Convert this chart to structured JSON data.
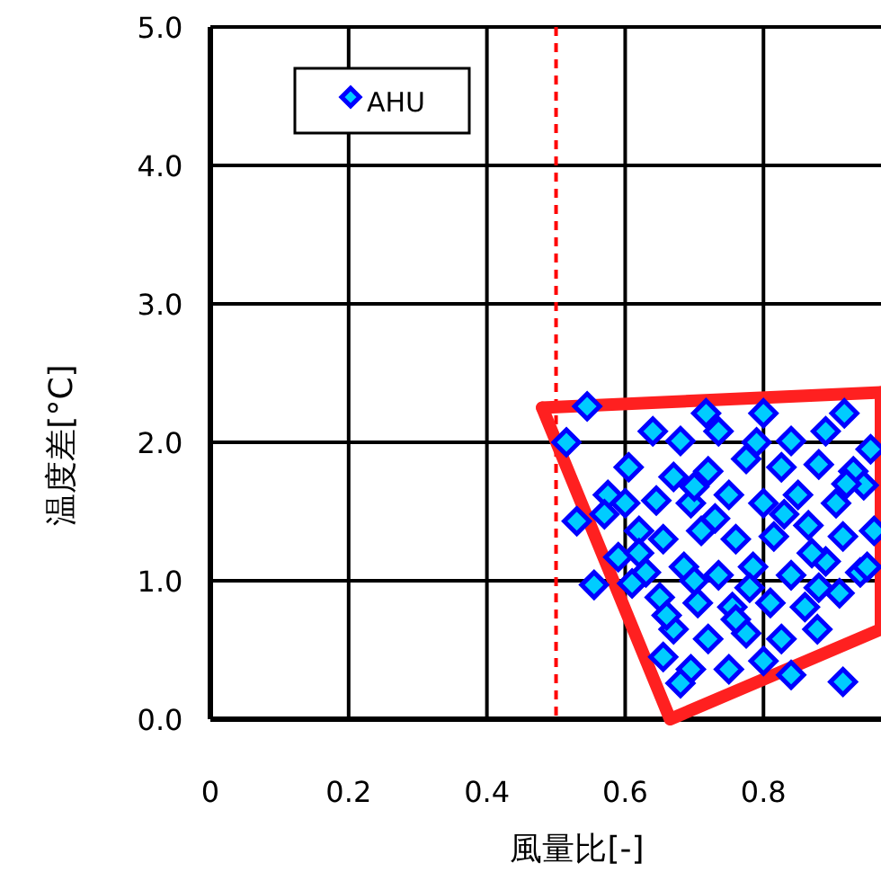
{
  "chart_data": {
    "type": "scatter",
    "xlabel": "風量比[-]",
    "ylabel": "温度差[°C]",
    "xlim": [
      0,
      0.97
    ],
    "xticks": [
      0,
      0.2,
      0.4,
      0.6,
      0.8
    ],
    "ylim": [
      0,
      5
    ],
    "yticks": [
      {
        "value": 0,
        "label": "0.0"
      },
      {
        "value": 1,
        "label": "1.0"
      },
      {
        "value": 2,
        "label": "2.0"
      },
      {
        "value": 3,
        "label": "3.0"
      },
      {
        "value": 4,
        "label": "4.0"
      },
      {
        "value": 5,
        "label": "5.0"
      }
    ],
    "grid": true,
    "legend": "top left",
    "marker": "diamond",
    "ref_lines": [
      {
        "axis": "x",
        "value": 0.5,
        "color": "#ff0000",
        "line_style": "dashed"
      }
    ],
    "series": [
      {
        "type": "line",
        "marker": "none",
        "color": "#ff2020",
        "x": [
          0.48,
          0.97
        ],
        "values": [
          2.25,
          2.36
        ]
      },
      {
        "type": "line",
        "marker": "none",
        "color": "#ff2020",
        "x": [
          0.48,
          0.665,
          0.97
        ],
        "values": [
          2.25,
          0.0,
          0.65
        ]
      },
      {
        "type": "line",
        "marker": "none",
        "color": "#ff2020",
        "x": [
          0.97,
          0.97
        ],
        "values": [
          0.65,
          2.36
        ]
      },
      {
        "name": "AHU",
        "color": "#00ccff",
        "x": [
          0.545,
          0.717,
          0.8,
          0.917,
          0.64,
          0.68,
          0.735,
          0.84,
          0.89,
          0.515,
          0.605,
          0.67,
          0.72,
          0.775,
          0.826,
          0.88,
          0.93,
          0.955,
          0.575,
          0.6,
          0.645,
          0.695,
          0.75,
          0.8,
          0.85,
          0.905,
          0.945,
          0.53,
          0.62,
          0.655,
          0.71,
          0.76,
          0.815,
          0.865,
          0.915,
          0.96,
          0.59,
          0.63,
          0.685,
          0.735,
          0.785,
          0.84,
          0.89,
          0.94,
          0.555,
          0.65,
          0.705,
          0.755,
          0.81,
          0.86,
          0.91,
          0.67,
          0.72,
          0.775,
          0.826,
          0.878,
          0.655,
          0.695,
          0.75,
          0.8,
          0.84,
          0.915,
          0.68,
          0.62,
          0.7,
          0.78,
          0.73,
          0.83,
          0.87,
          0.66,
          0.76,
          0.88,
          0.92,
          0.7,
          0.79,
          0.57,
          0.95,
          0.61
        ],
        "values": [
          2.26,
          2.21,
          2.21,
          2.21,
          2.08,
          2.01,
          2.08,
          2.01,
          2.08,
          2.0,
          1.82,
          1.75,
          1.79,
          1.88,
          1.82,
          1.84,
          1.79,
          1.95,
          1.62,
          1.56,
          1.58,
          1.56,
          1.62,
          1.56,
          1.62,
          1.56,
          1.69,
          1.43,
          1.36,
          1.3,
          1.36,
          1.3,
          1.32,
          1.4,
          1.32,
          1.36,
          1.17,
          1.06,
          1.1,
          1.04,
          1.1,
          1.04,
          1.14,
          1.06,
          0.97,
          0.88,
          0.84,
          0.81,
          0.84,
          0.81,
          0.91,
          0.65,
          0.58,
          0.62,
          0.58,
          0.65,
          0.45,
          0.36,
          0.36,
          0.42,
          0.32,
          0.27,
          0.26,
          1.2,
          1.0,
          0.95,
          1.45,
          1.48,
          1.2,
          0.75,
          0.72,
          0.95,
          1.7,
          1.68,
          2.0,
          1.48,
          1.1,
          0.98
        ]
      }
    ]
  }
}
